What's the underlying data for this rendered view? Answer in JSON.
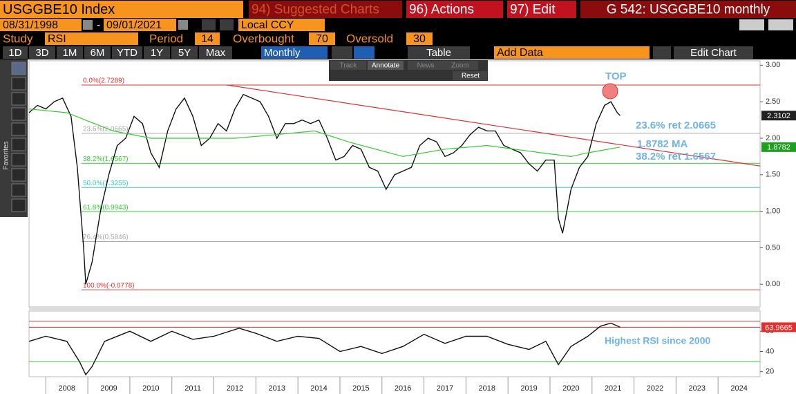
{
  "toolbar": {
    "security": "USGGBE10 Index",
    "suggested": "94) Suggested Charts",
    "actions": "96) Actions",
    "edit": "97) Edit",
    "function": "G 542: USGGBE10 monthly",
    "start_date": "08/31/1998",
    "dash": "-",
    "end_date": "09/01/2021",
    "currency": "Local CCY",
    "study_label": "Study",
    "study": "RSI",
    "period_label": "Period",
    "period": 14,
    "overbought_label": "Overbought",
    "overbought": 70,
    "oversold_label": "Oversold",
    "oversold": 30,
    "ranges": [
      "1D",
      "3D",
      "1M",
      "6M",
      "YTD",
      "1Y",
      "5Y",
      "Max"
    ],
    "frequency": "Monthly",
    "table": "Table",
    "add_data": "Add Data",
    "edit_chart": "Edit Chart",
    "tools": [
      "Track",
      "Annotate",
      "News",
      "Zoom",
      "Reset"
    ],
    "favorites": "Favorites"
  },
  "chart_data": [
    {
      "type": "line",
      "xlim": [
        2007.6,
        2025.0
      ],
      "ylim": [
        -0.32,
        3.06
      ],
      "yticks": [
        {
          "value": 0,
          "label": "0.00"
        },
        {
          "value": 0.5,
          "label": "0.50"
        },
        {
          "value": 1,
          "label": "1.00"
        },
        {
          "value": 1.5,
          "label": "1.50"
        },
        {
          "value": 2,
          "label": "2.00"
        },
        {
          "value": 2.5,
          "label": "2.50"
        },
        {
          "value": 3,
          "label": "3.00"
        }
      ],
      "xticks": [
        {
          "value": 2008.5,
          "label": "2008"
        },
        {
          "value": 2009.5,
          "label": "2009"
        },
        {
          "value": 2010.5,
          "label": "2010"
        },
        {
          "value": 2011.5,
          "label": "2011"
        },
        {
          "value": 2012.5,
          "label": "2012"
        },
        {
          "value": 2013.5,
          "label": "2013"
        },
        {
          "value": 2014.5,
          "label": "2014"
        },
        {
          "value": 2015.5,
          "label": "2015"
        },
        {
          "value": 2016.5,
          "label": "2016"
        },
        {
          "value": 2017.5,
          "label": "2017"
        },
        {
          "value": 2018.5,
          "label": "2018"
        },
        {
          "value": 2019.5,
          "label": "2019"
        },
        {
          "value": 2020.5,
          "label": "2020"
        },
        {
          "value": 2021.5,
          "label": "2021"
        },
        {
          "value": 2022.5,
          "label": "2022"
        },
        {
          "value": 2023.5,
          "label": "2023"
        },
        {
          "value": 2024.5,
          "label": "2024"
        }
      ],
      "series": [
        {
          "color": "#111111",
          "end_value": 2.3102,
          "x": [
            2007.6,
            2007.8,
            2008.0,
            2008.2,
            2008.4,
            2008.6,
            2008.75,
            2008.9,
            2008.95,
            2009.1,
            2009.3,
            2009.5,
            2009.7,
            2009.9,
            2010.1,
            2010.3,
            2010.5,
            2010.7,
            2010.9,
            2011.1,
            2011.3,
            2011.5,
            2011.7,
            2011.9,
            2012.1,
            2012.3,
            2012.5,
            2012.7,
            2012.9,
            2013.1,
            2013.3,
            2013.5,
            2013.7,
            2013.9,
            2014.1,
            2014.3,
            2014.5,
            2014.7,
            2014.9,
            2015.1,
            2015.3,
            2015.5,
            2015.7,
            2015.9,
            2016.1,
            2016.3,
            2016.5,
            2016.7,
            2016.9,
            2017.1,
            2017.3,
            2017.5,
            2017.7,
            2017.9,
            2018.1,
            2018.3,
            2018.5,
            2018.7,
            2018.9,
            2019.1,
            2019.3,
            2019.5,
            2019.7,
            2019.9,
            2020.1,
            2020.2,
            2020.3,
            2020.5,
            2020.7,
            2020.9,
            2021.1,
            2021.3,
            2021.45,
            2021.6,
            2021.67
          ],
          "values": [
            2.35,
            2.45,
            2.4,
            2.5,
            2.55,
            2.3,
            1.6,
            0.5,
            0.0,
            0.3,
            1.0,
            1.5,
            1.9,
            2.0,
            2.3,
            2.2,
            1.8,
            1.6,
            2.1,
            2.4,
            2.55,
            2.3,
            1.9,
            2.0,
            2.2,
            2.1,
            2.4,
            2.6,
            2.55,
            2.5,
            2.3,
            2.0,
            2.2,
            2.2,
            2.25,
            2.2,
            2.25,
            2.0,
            1.7,
            1.75,
            1.9,
            1.85,
            1.6,
            1.55,
            1.3,
            1.5,
            1.55,
            1.6,
            1.9,
            2.0,
            1.95,
            1.75,
            1.8,
            1.9,
            2.05,
            2.15,
            2.1,
            2.1,
            1.9,
            1.85,
            1.8,
            1.65,
            1.55,
            1.7,
            1.7,
            0.9,
            0.7,
            1.3,
            1.6,
            1.75,
            2.2,
            2.45,
            2.5,
            2.35,
            2.31
          ]
        },
        {
          "color": "#33cc33",
          "end_value": 1.8782,
          "x": [
            2007.6,
            2008.5,
            2009.6,
            2010.5,
            2011.5,
            2012.5,
            2013.5,
            2014.4,
            2015.2,
            2016.5,
            2017.5,
            2018.5,
            2019.8,
            2020.5,
            2020.9,
            2021.67
          ],
          "values": [
            2.4,
            2.35,
            2.1,
            2.0,
            2.0,
            2.0,
            2.05,
            2.1,
            1.95,
            1.75,
            1.85,
            1.9,
            1.8,
            1.75,
            1.8,
            1.8782
          ]
        }
      ],
      "trendline": {
        "color": "#e03030",
        "x": [
          2012.3,
          2025.0
        ],
        "values": [
          2.73,
          1.62
        ]
      },
      "levels": [
        {
          "label": "0.0%(2.7289)",
          "value": 2.7289,
          "color": "#e03030"
        },
        {
          "label": "23.6%(2.0665)",
          "value": 2.0665,
          "color": "#aaaaaa"
        },
        {
          "label": "38.2%(1.6567)",
          "value": 1.6567,
          "color": "#33cc33"
        },
        {
          "label": "50.0%(1.3255)",
          "value": 1.3255,
          "color": "#33cccc"
        },
        {
          "label": "61.8%(0.9943)",
          "value": 0.9943,
          "color": "#33cc33"
        },
        {
          "label": "76.4%(0.5846)",
          "value": 0.5846,
          "color": "#aaaaaa"
        },
        {
          "label": "100.0%(-0.0778)",
          "value": -0.0778,
          "color": "#e03030"
        }
      ],
      "levels_start": 2008.85,
      "annotations": [
        "TOP",
        "23.6% ret 2.0665",
        "1.8782 MA",
        "38.2% ret 1.6567"
      ]
    },
    {
      "type": "line",
      "xlim": [
        2007.6,
        2025.0
      ],
      "ylim": [
        15,
        80
      ],
      "yticks": [
        20,
        40,
        60
      ],
      "series": [
        {
          "color": "#111111",
          "end_value": 63.9665,
          "x": [
            2007.6,
            2008.0,
            2008.5,
            2008.8,
            2008.95,
            2009.1,
            2009.4,
            2010.0,
            2010.5,
            2011.0,
            2011.5,
            2012.0,
            2012.6,
            2013.0,
            2013.5,
            2014.0,
            2014.5,
            2015.0,
            2015.5,
            2016.0,
            2016.5,
            2017.0,
            2017.5,
            2018.0,
            2018.5,
            2019.0,
            2019.5,
            2019.9,
            2020.2,
            2020.5,
            2020.9,
            2021.2,
            2021.45,
            2021.67
          ],
          "values": [
            50,
            55,
            50,
            30,
            17,
            25,
            50,
            60,
            50,
            60,
            52,
            55,
            63,
            58,
            50,
            55,
            53,
            40,
            45,
            38,
            45,
            57,
            48,
            55,
            55,
            47,
            42,
            50,
            27,
            45,
            55,
            65,
            68,
            63.9665
          ]
        }
      ],
      "annotation": "Highest RSI since 2000"
    }
  ]
}
